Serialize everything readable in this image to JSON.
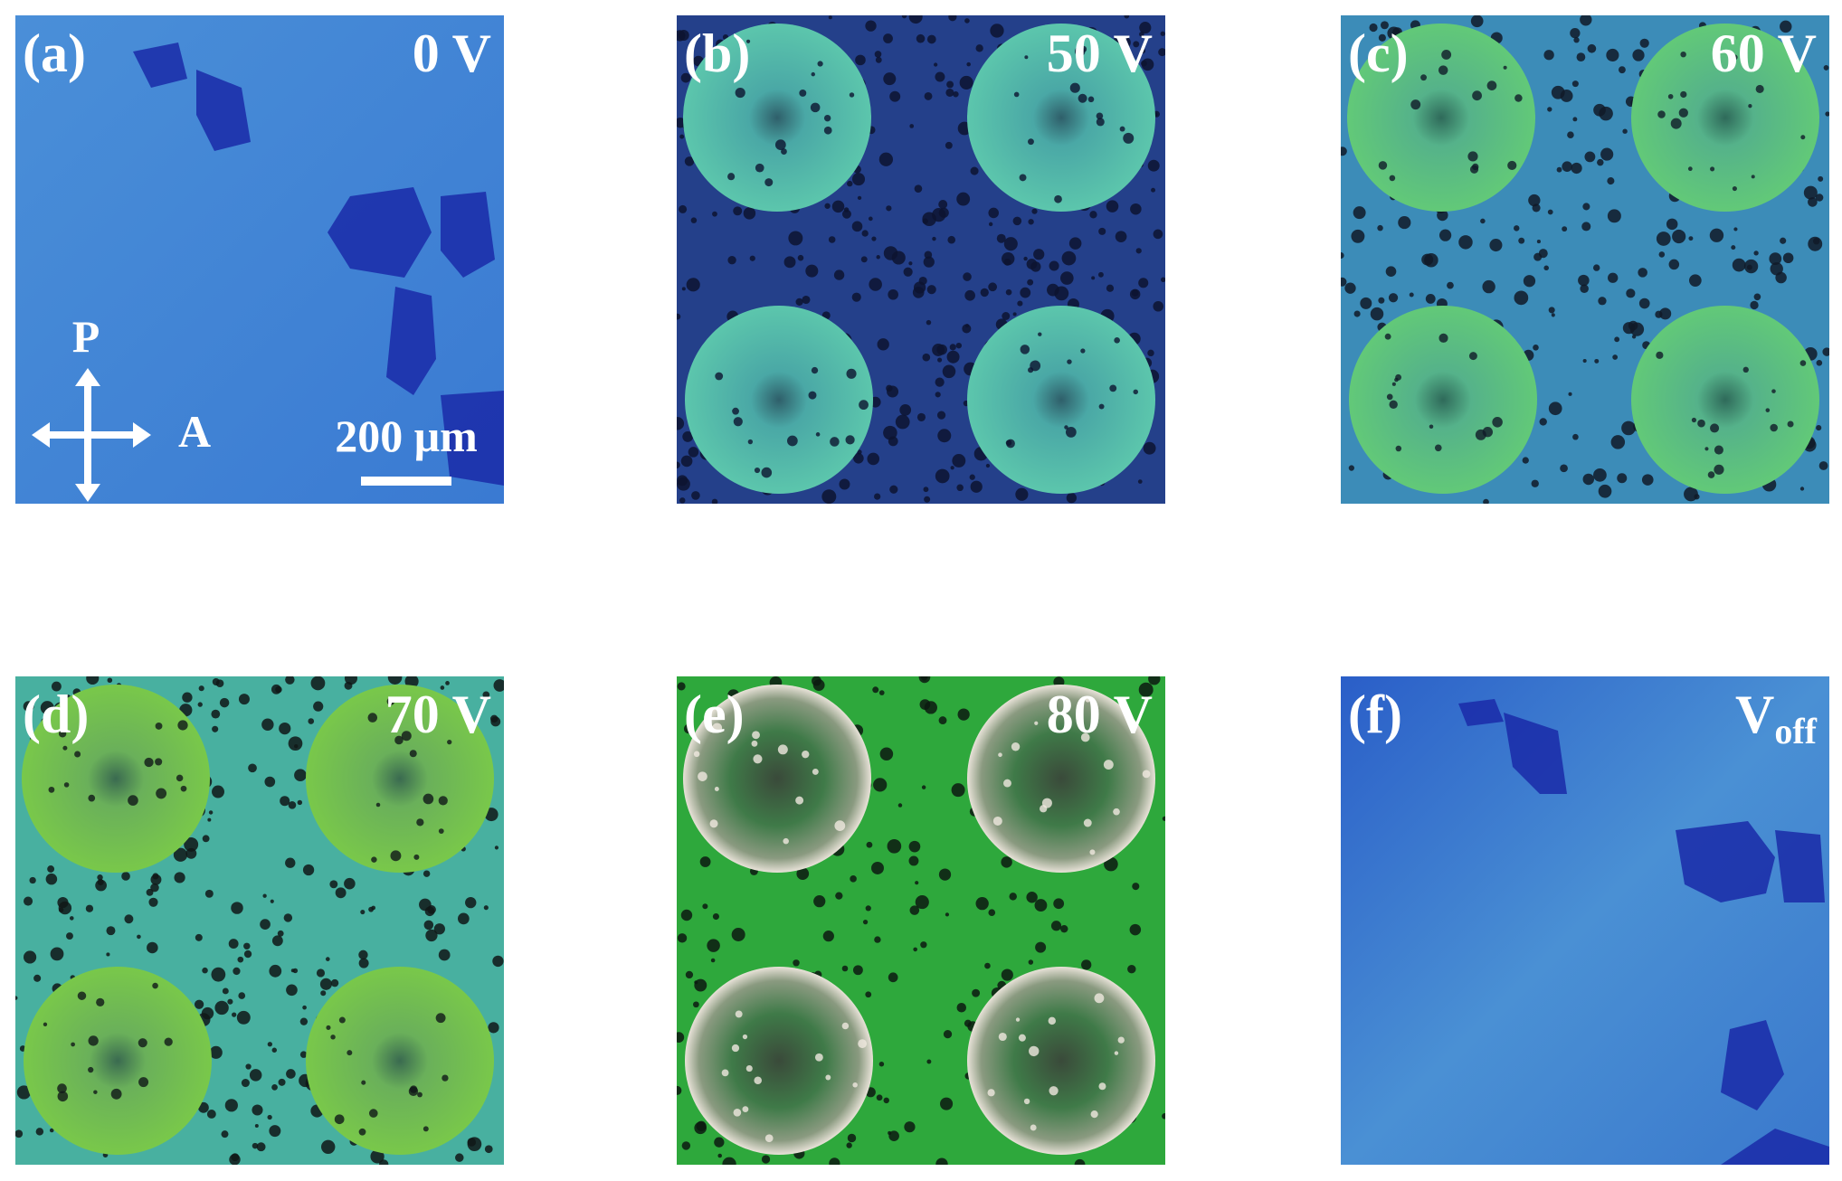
{
  "panels": [
    {
      "label": "(a)",
      "voltage": "0 V"
    },
    {
      "label": "(b)",
      "voltage": "50 V"
    },
    {
      "label": "(c)",
      "voltage": "60 V"
    },
    {
      "label": "(d)",
      "voltage": "70 V"
    },
    {
      "label": "(e)",
      "voltage": "80 V"
    },
    {
      "label": "(f)",
      "voltage": {
        "main": "V",
        "sub": "off"
      }
    }
  ],
  "scale_bar": "200 μm",
  "polarizer": "P",
  "analyzer": "A"
}
